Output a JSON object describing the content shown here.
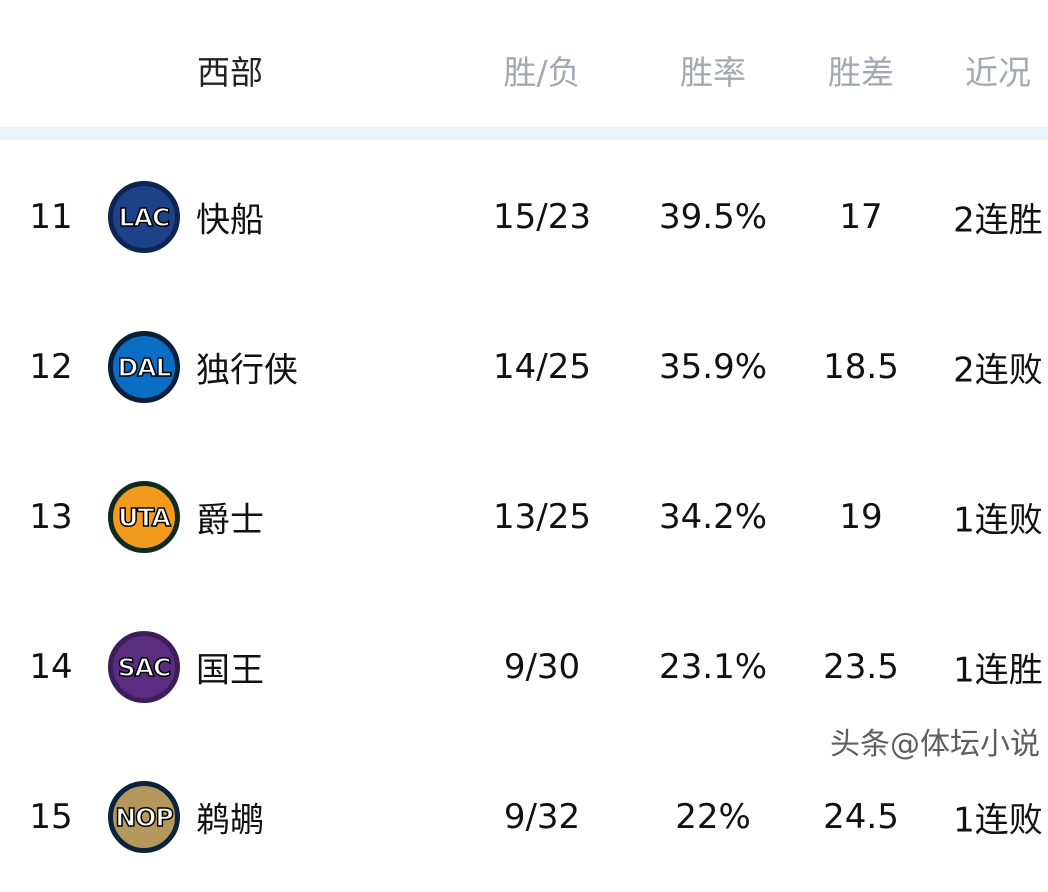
{
  "header": {
    "conference": "西部",
    "cols": [
      "胜/负",
      "胜率",
      "胜差",
      "近况"
    ]
  },
  "rows": [
    {
      "rank": "11",
      "abbr": "LAC",
      "name": "快船",
      "wl": "15/23",
      "pct": "39.5%",
      "gb": "17",
      "streak": "2连胜",
      "logo_bg": "#1d428a",
      "logo_ring": "#0d2550"
    },
    {
      "rank": "12",
      "abbr": "DAL",
      "name": "独行侠",
      "wl": "14/25",
      "pct": "35.9%",
      "gb": "18.5",
      "streak": "2连败",
      "logo_bg": "#0a6fc4",
      "logo_ring": "#0b1f3b"
    },
    {
      "rank": "13",
      "abbr": "UTA",
      "name": "爵士",
      "wl": "13/25",
      "pct": "34.2%",
      "gb": "19",
      "streak": "1连败",
      "logo_bg": "#f29b1d",
      "logo_ring": "#0f2a1e"
    },
    {
      "rank": "14",
      "abbr": "SAC",
      "name": "国王",
      "wl": "9/30",
      "pct": "23.1%",
      "gb": "23.5",
      "streak": "1连胜",
      "logo_bg": "#5a2d81",
      "logo_ring": "#3d1d5c"
    },
    {
      "rank": "15",
      "abbr": "NOP",
      "name": "鹈鹕",
      "wl": "9/32",
      "pct": "22%",
      "gb": "24.5",
      "streak": "1连败",
      "logo_bg": "#b4975a",
      "logo_ring": "#0c2340"
    }
  ],
  "watermark": "头条@体坛小说"
}
